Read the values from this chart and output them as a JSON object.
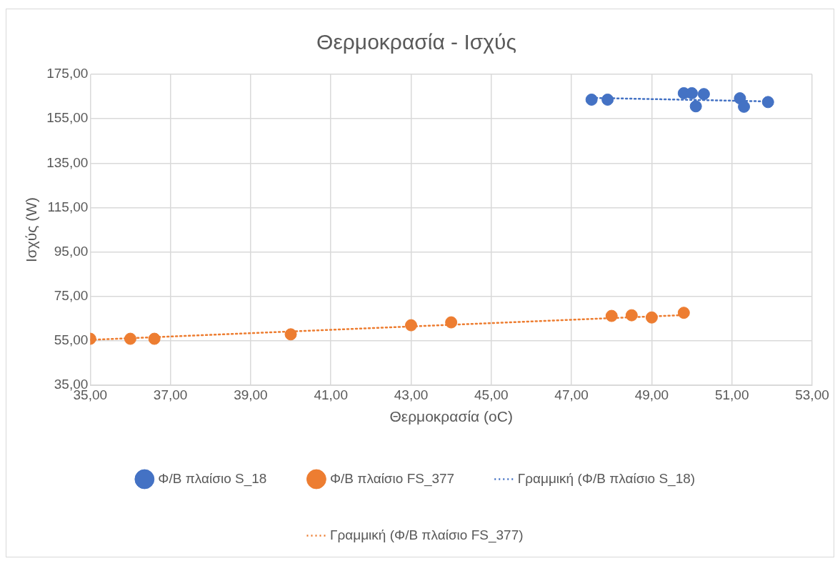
{
  "chart_data": {
    "type": "scatter",
    "title": "Θερμοκρασία - Ισχύς",
    "xlabel": "Θερμοκρασία (oC)",
    "ylabel": "Ισχύς (W)",
    "xlim": [
      35,
      53
    ],
    "ylim": [
      35,
      175
    ],
    "xticks": [
      {
        "value": 35,
        "label": "35,00"
      },
      {
        "value": 37,
        "label": "37,00"
      },
      {
        "value": 39,
        "label": "39,00"
      },
      {
        "value": 41,
        "label": "41,00"
      },
      {
        "value": 43,
        "label": "43,00"
      },
      {
        "value": 45,
        "label": "45,00"
      },
      {
        "value": 47,
        "label": "47,00"
      },
      {
        "value": 49,
        "label": "49,00"
      },
      {
        "value": 51,
        "label": "51,00"
      },
      {
        "value": 53,
        "label": "53,00"
      }
    ],
    "yticks": [
      {
        "value": 35,
        "label": "35,00"
      },
      {
        "value": 55,
        "label": "55,00"
      },
      {
        "value": 75,
        "label": "75,00"
      },
      {
        "value": 95,
        "label": "95,00"
      },
      {
        "value": 115,
        "label": "115,00"
      },
      {
        "value": 135,
        "label": "135,00"
      },
      {
        "value": 155,
        "label": "155,00"
      },
      {
        "value": 175,
        "label": "175,00"
      }
    ],
    "grid": true,
    "legend": "bottom",
    "marker": "circle",
    "series": [
      {
        "name": "Φ/Β πλαίσιο S_18",
        "color": "#4472c4",
        "x": [
          47.5,
          47.9,
          49.8,
          50.0,
          50.3,
          50.1,
          51.2,
          51.3,
          51.9
        ],
        "values": [
          163.6,
          163.6,
          166.5,
          166.5,
          166.1,
          160.6,
          164.2,
          160.4,
          162.5
        ]
      },
      {
        "name": "Φ/Β πλαίσιο FS_377",
        "color": "#ed7d31",
        "x": [
          35.0,
          36.0,
          36.6,
          40.0,
          43.0,
          44.0,
          48.0,
          48.5,
          49.0,
          49.8
        ],
        "values": [
          55.9,
          55.9,
          55.9,
          57.9,
          62.0,
          63.3,
          66.2,
          66.5,
          65.5,
          67.6
        ]
      },
      {
        "name": "Γραμμική (Φ/Β πλαίσιο S_18)",
        "type": "line",
        "color": "#4472c4",
        "line_style": "dotted",
        "marker": "none",
        "x": [
          47.5,
          51.9
        ],
        "values": [
          164.4,
          162.8
        ]
      },
      {
        "name": "Γραμμική (Φ/Β πλαίσιο FS_377)",
        "type": "line",
        "color": "#ed7d31",
        "line_style": "dotted",
        "marker": "none",
        "x": [
          35.0,
          49.8
        ],
        "values": [
          55.4,
          66.6
        ]
      }
    ]
  }
}
